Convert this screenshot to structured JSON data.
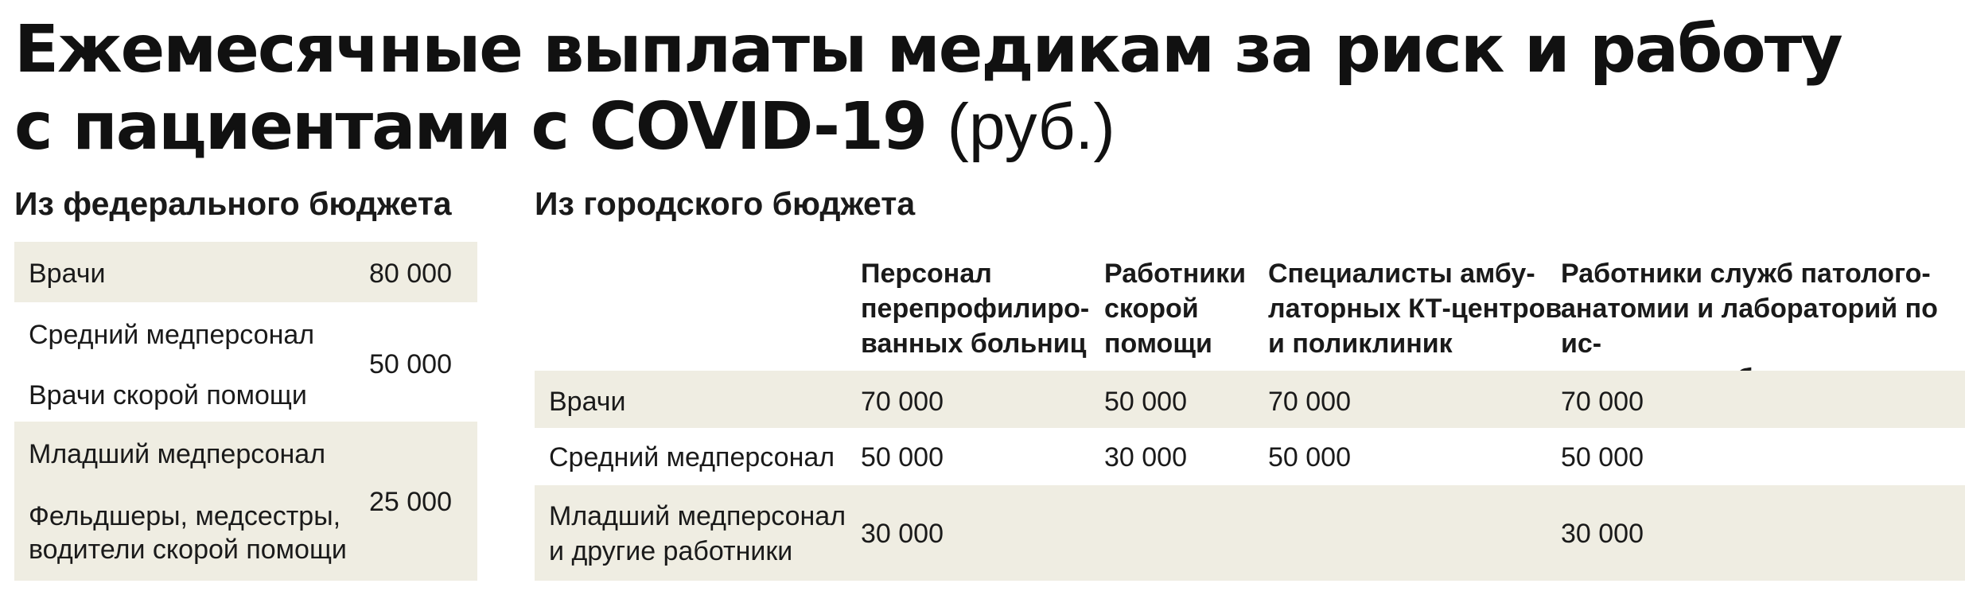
{
  "title": {
    "line1": "Ежемесячные выплаты медикам за риск и работу",
    "line2": "с пациентами с COVID-19",
    "unit": "(руб.)"
  },
  "federal": {
    "heading": "Из федерального бюджета",
    "rows": [
      {
        "labels": [
          "Врачи"
        ],
        "value": "80 000"
      },
      {
        "labels": [
          "Средний медперсонал",
          "Врачи скорой помощи"
        ],
        "value": "50 000"
      },
      {
        "labels": [
          "Младший медперсонал",
          "Фельдшеры, медсестры, водители скорой помощи"
        ],
        "value": "25 000"
      }
    ]
  },
  "city": {
    "heading": "Из городского бюджета",
    "columns": [
      "Персонал перепрофилиро-ванных больниц",
      "Работники скорой помощи",
      "Специалисты амбу-латорных КТ-центров и поликлиник",
      "Работники служб патолого-анатомии и лабораторий по ис-следованию биоматериалов"
    ],
    "column_lines": [
      [
        "Персонал",
        "перепрофилиро-",
        "ванных больниц"
      ],
      [
        "Работники",
        "скорой",
        "помощи"
      ],
      [
        "Специалисты амбу-",
        "латорных КТ-центров",
        "и поликлиник"
      ],
      [
        "Работники служб патолого-",
        "анатомии и лабораторий по ис-",
        "следованию биоматериалов"
      ]
    ],
    "rows": [
      {
        "label": [
          "Врачи"
        ],
        "values": [
          "70 000",
          "50 000",
          "70 000",
          "70 000"
        ]
      },
      {
        "label": [
          "Средний медперсонал"
        ],
        "values": [
          "50 000",
          "30 000",
          "50 000",
          "50 000"
        ]
      },
      {
        "label": [
          "Младший медперсонал",
          "и другие работники"
        ],
        "values": [
          "30 000",
          "",
          "",
          "30 000"
        ]
      }
    ]
  },
  "colors": {
    "band": "#efede2",
    "text": "#1a1a1a"
  }
}
